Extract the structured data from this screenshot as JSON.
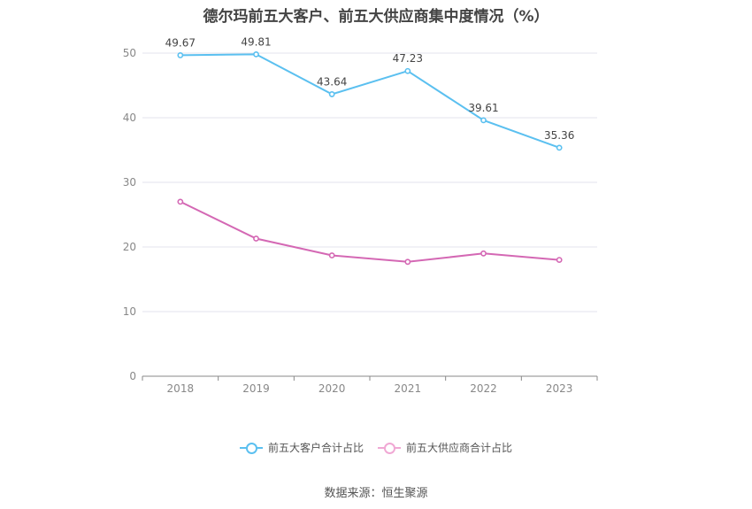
{
  "chart_data": {
    "type": "line",
    "title": "德尔玛前五大客户、前五大供应商集中度情况（%）",
    "categories": [
      "2018",
      "2019",
      "2020",
      "2021",
      "2022",
      "2023"
    ],
    "ylim": [
      0,
      50
    ],
    "yticks": [
      0,
      10,
      20,
      30,
      40,
      50
    ],
    "grid": true,
    "legend_position": "bottom",
    "series": [
      {
        "name": "前五大客户合计占比",
        "values": [
          49.67,
          49.81,
          43.64,
          47.23,
          39.61,
          35.36
        ],
        "labels": [
          "49.67",
          "49.81",
          "43.64",
          "47.23",
          "39.61",
          "35.36"
        ],
        "color": "#5bc0f0"
      },
      {
        "name": "前五大供应商合计占比",
        "values": [
          27.0,
          21.3,
          18.7,
          17.7,
          19.0,
          18.0
        ],
        "color": "#d468b4"
      }
    ]
  },
  "source": "数据来源：恒生聚源"
}
